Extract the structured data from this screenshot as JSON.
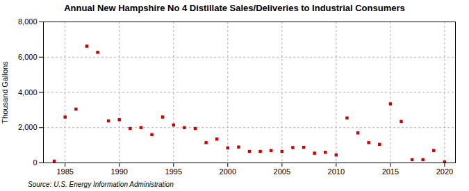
{
  "chart_data": {
    "type": "scatter",
    "title": "Annual New Hampshire No 4 Distillate Sales/Deliveries to Industrial Consumers",
    "ylabel": "Thousand Gallons",
    "source": "Source: U.S. Energy Information Administration",
    "x": [
      1984,
      1985,
      1986,
      1987,
      1988,
      1989,
      1990,
      1991,
      1992,
      1993,
      1994,
      1995,
      1996,
      1997,
      1998,
      1999,
      2000,
      2001,
      2002,
      2003,
      2004,
      2005,
      2006,
      2007,
      2008,
      2009,
      2010,
      2011,
      2012,
      2013,
      2014,
      2015,
      2016,
      2017,
      2018,
      2019,
      2020
    ],
    "values": [
      100,
      2600,
      3050,
      6620,
      6270,
      2380,
      2450,
      1950,
      2000,
      1600,
      2600,
      2150,
      2000,
      1950,
      1150,
      1350,
      850,
      900,
      650,
      650,
      700,
      650,
      870,
      880,
      550,
      600,
      450,
      2550,
      1700,
      1150,
      1050,
      3350,
      2350,
      180,
      180,
      700,
      50
    ],
    "color": "#cc0000",
    "marker": "square",
    "xlim": [
      1983,
      2021
    ],
    "ylim": [
      0,
      8000
    ],
    "xticks": [
      1985,
      1990,
      1995,
      2000,
      2005,
      2010,
      2015,
      2020
    ],
    "yticks": [
      0,
      {
        "value": 2000,
        "label": "2,000"
      },
      {
        "value": 4000,
        "label": "4,000"
      },
      {
        "value": 6000,
        "label": "6,000"
      },
      {
        "value": 8000,
        "label": "8,000"
      }
    ],
    "grid": true
  }
}
